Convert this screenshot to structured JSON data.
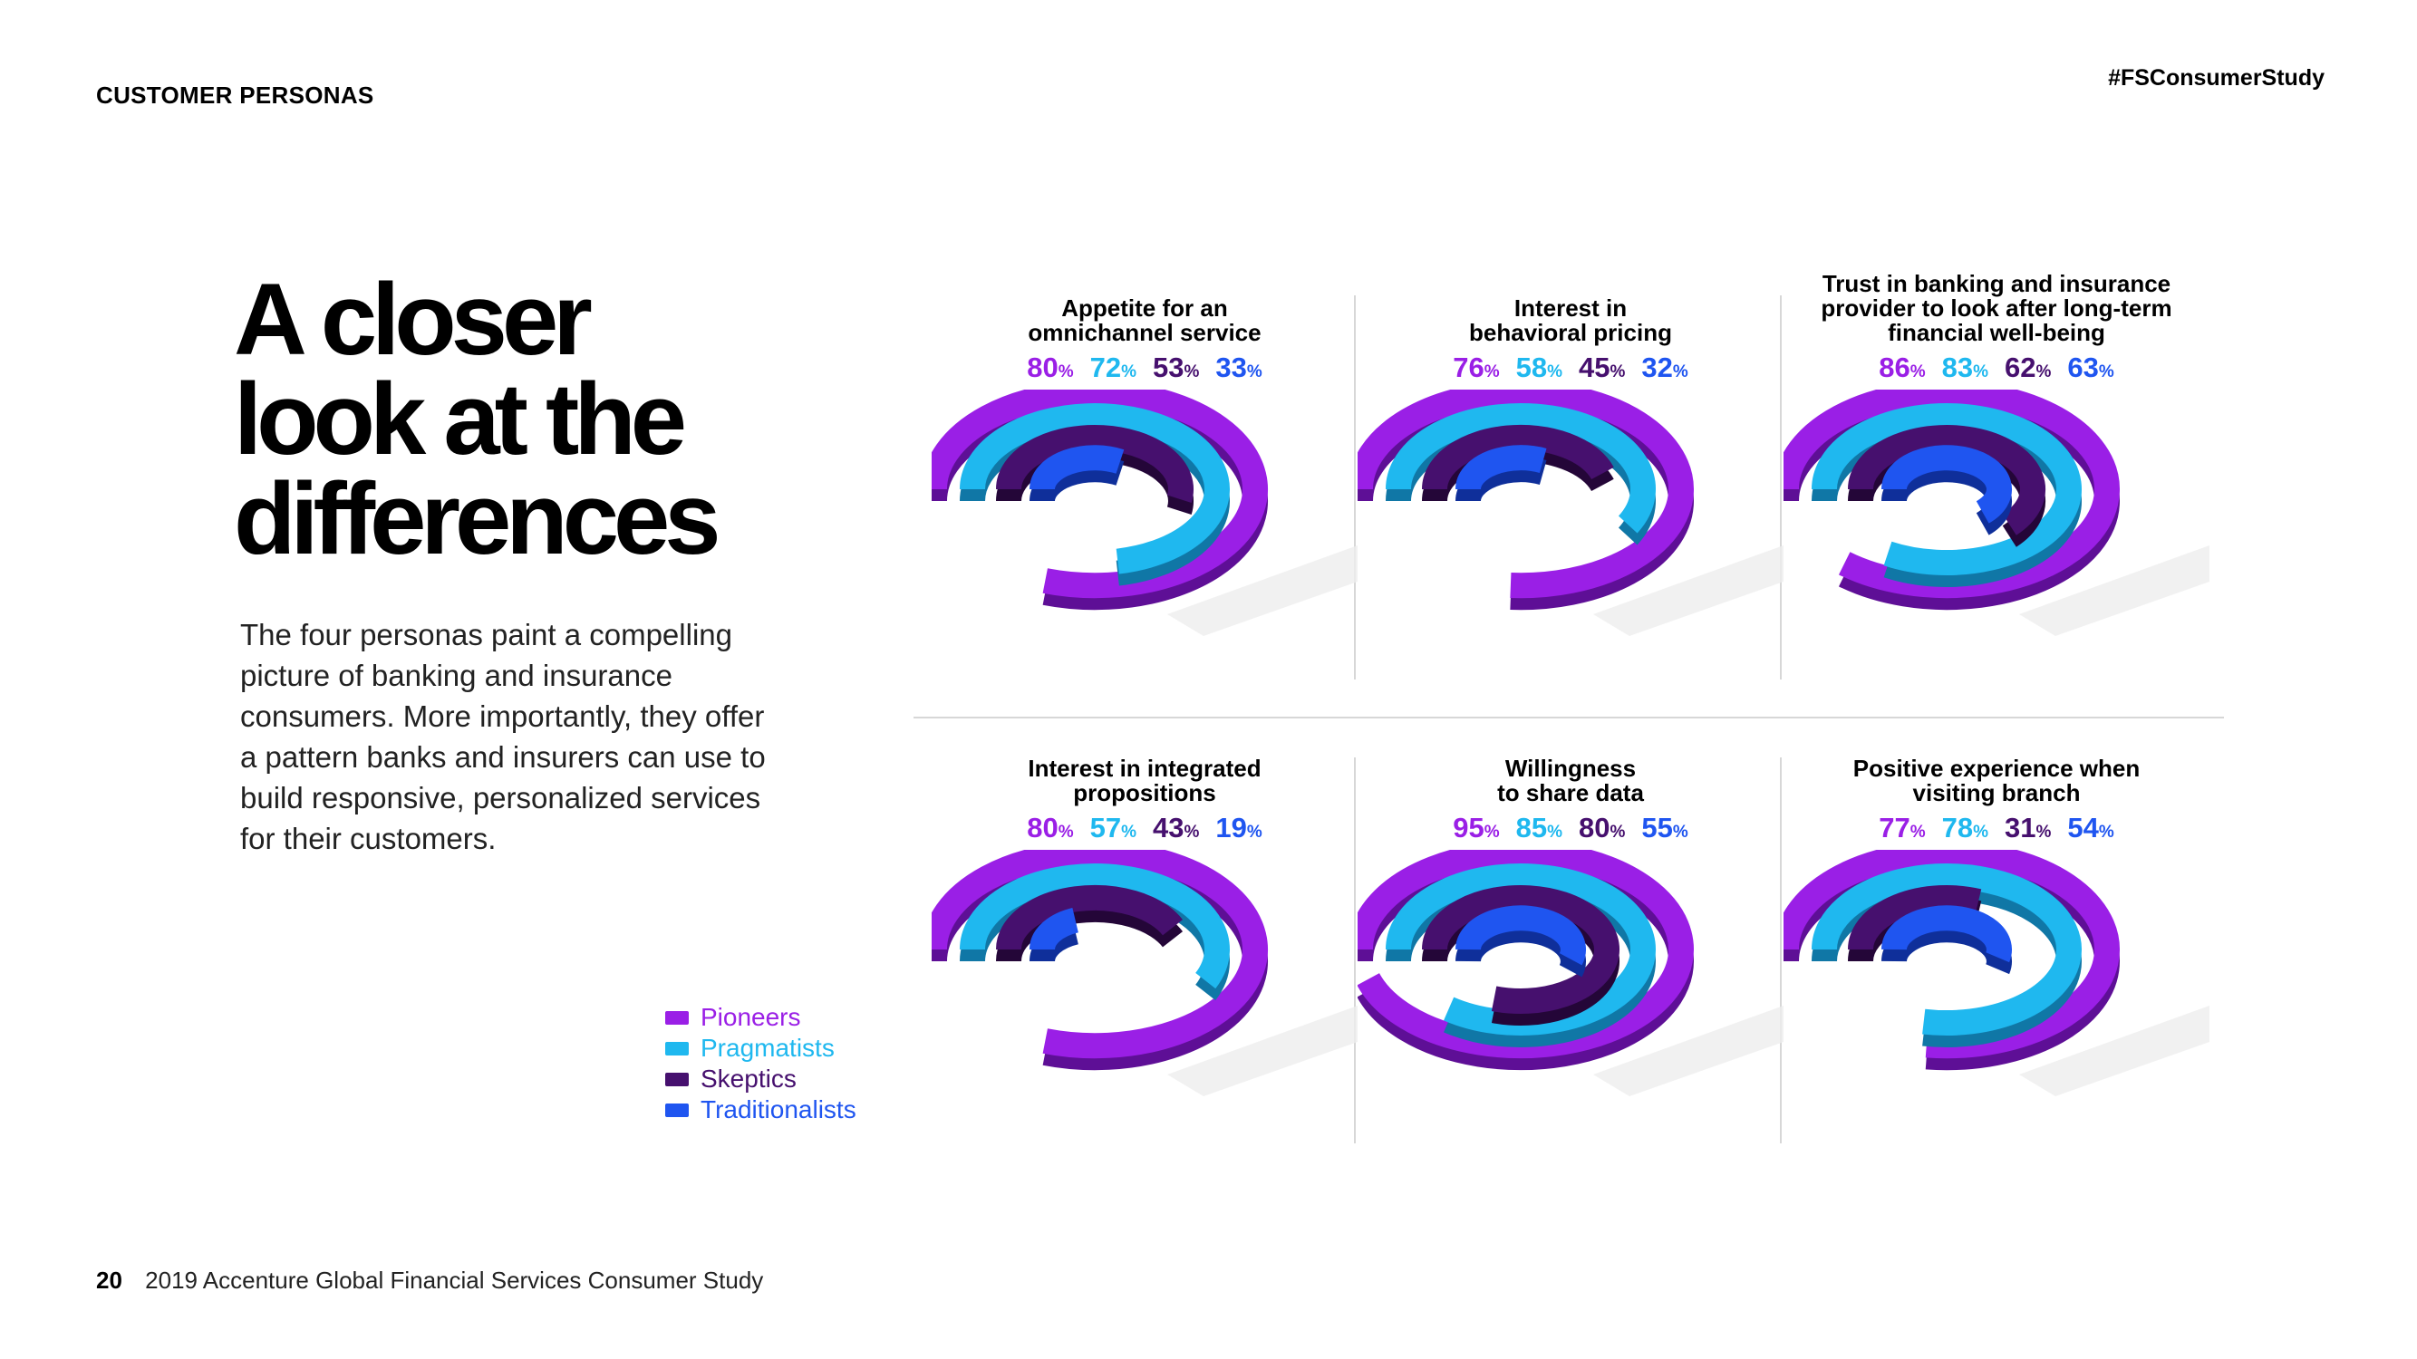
{
  "header": {
    "section_label": "CUSTOMER PERSONAS",
    "hashtag": "#FSConsumerStudy"
  },
  "headline": [
    "A closer",
    "look at the",
    "differences"
  ],
  "intro": "The four personas paint a compelling picture of banking and insurance consumers. More importantly, they offer a pattern banks and insurers can use to build responsive, personalized services for their customers.",
  "legend": [
    {
      "label": "Pioneers",
      "color": "#9a1fe6"
    },
    {
      "label": "Pragmatists",
      "color": "#1fb8ef"
    },
    {
      "label": "Skeptics",
      "color": "#46106e"
    },
    {
      "label": "Traditionalists",
      "color": "#1f55f0"
    }
  ],
  "footer": {
    "page_number": "20",
    "text": "2019 Accenture Global Financial Services Consumer Study"
  },
  "chart_data": {
    "type": "radial-bar",
    "unit": "%",
    "series_names": [
      "Pioneers",
      "Pragmatists",
      "Skeptics",
      "Traditionalists"
    ],
    "series_colors": [
      "#9a1fe6",
      "#1fb8ef",
      "#46106e",
      "#1f55f0"
    ],
    "series_text_colors": [
      "#9a1fe6",
      "#1fb8ef",
      "#46106e",
      "#1f55f0"
    ],
    "panels": [
      {
        "title": [
          "Appetite for an",
          "omnichannel service"
        ],
        "values": [
          80,
          72,
          53,
          33
        ]
      },
      {
        "title": [
          "Interest in",
          "behavioral pricing"
        ],
        "values": [
          76,
          58,
          45,
          32
        ]
      },
      {
        "title": [
          "Trust in banking and insurance",
          "provider to look after long-term",
          "financial well-being"
        ],
        "values": [
          86,
          83,
          62,
          63
        ]
      },
      {
        "title": [
          "Interest in integrated",
          "propositions"
        ],
        "values": [
          80,
          57,
          43,
          19
        ]
      },
      {
        "title": [
          "Willingness",
          "to share data"
        ],
        "values": [
          95,
          85,
          80,
          55
        ]
      },
      {
        "title": [
          "Positive experience when",
          "visiting branch"
        ],
        "values": [
          77,
          78,
          31,
          54
        ]
      }
    ]
  }
}
